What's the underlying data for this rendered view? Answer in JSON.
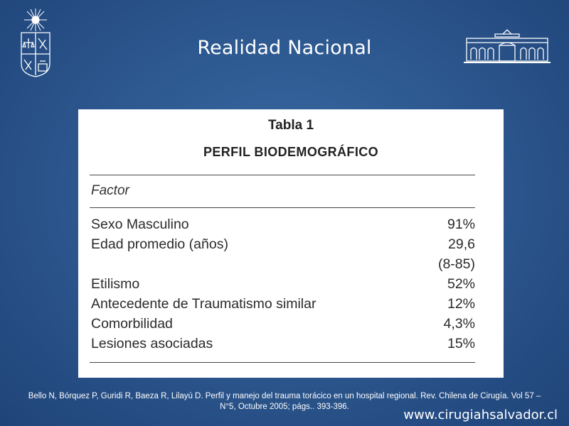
{
  "slide": {
    "title": "Realidad Nacional",
    "citation_line1": "Bello N,  Bórquez P, Guridi R, Baeza R, Lilayú D. Perfil y manejo del trauma torácico en un hospital regional. Rev. Chilena de Cirugía. Vol 57 –",
    "citation_line2": "N°5, Octubre 2005; págs.. 393-396.",
    "website": "www.cirugiahsalvador.cl"
  },
  "logos": {
    "left": "university-crest-icon",
    "right": "hospital-building-icon"
  },
  "table": {
    "caption": "Tabla 1",
    "subtitle": "PERFIL BIODEMOGRÁFICO",
    "header": "Factor",
    "rows": [
      {
        "factor": "Sexo Masculino",
        "value": "91%",
        "extra": ""
      },
      {
        "factor": "Edad promedio (años)",
        "value": "29,6",
        "extra": "(8-85)"
      },
      {
        "factor": "Etilismo",
        "value": "52%",
        "extra": ""
      },
      {
        "factor": "Antecedente de Traumatismo similar",
        "value": "12%",
        "extra": ""
      },
      {
        "factor": "Comorbilidad",
        "value": "4,3%",
        "extra": ""
      },
      {
        "factor": "Lesiones asociadas",
        "value": "15%",
        "extra": ""
      }
    ]
  }
}
